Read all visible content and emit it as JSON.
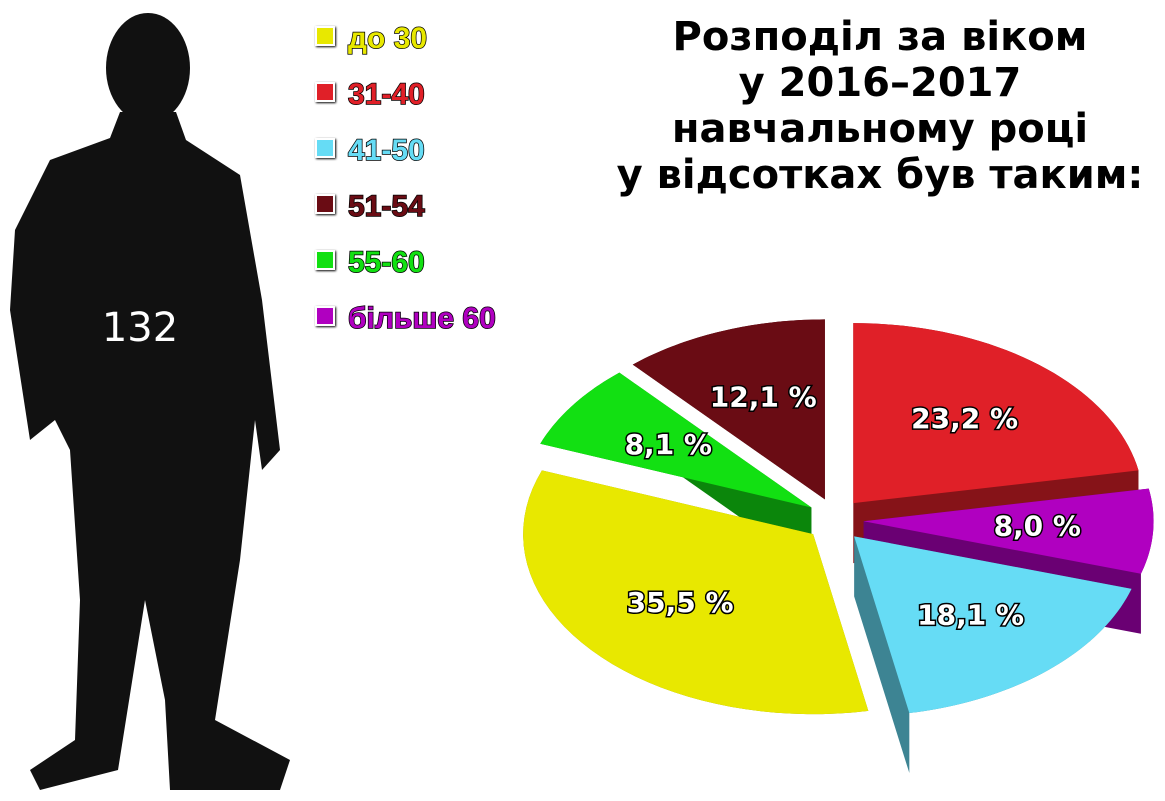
{
  "chart_data": {
    "type": "pie",
    "title": [
      "Розподіл за віком",
      "у 2016–2017",
      "навчальному році",
      "у відсотках був таким:"
    ],
    "count": 132,
    "categories": [
      "до 30",
      "31-40",
      "41-50",
      "51-54",
      "55-60",
      "більше 60"
    ],
    "values": [
      35.5,
      23.2,
      18.1,
      12.1,
      8.1,
      8.0
    ],
    "value_labels": [
      "35,5 %",
      "23,2 %",
      "18,1 %",
      "12,1 %",
      "8,1 %",
      "8,0 %"
    ],
    "colors": [
      "#e8e800",
      "#e02028",
      "#66dcf5",
      "#6a0c14",
      "#12e012",
      "#b000c0"
    ],
    "slice_order": [
      1,
      5,
      2,
      0,
      4,
      3
    ]
  }
}
